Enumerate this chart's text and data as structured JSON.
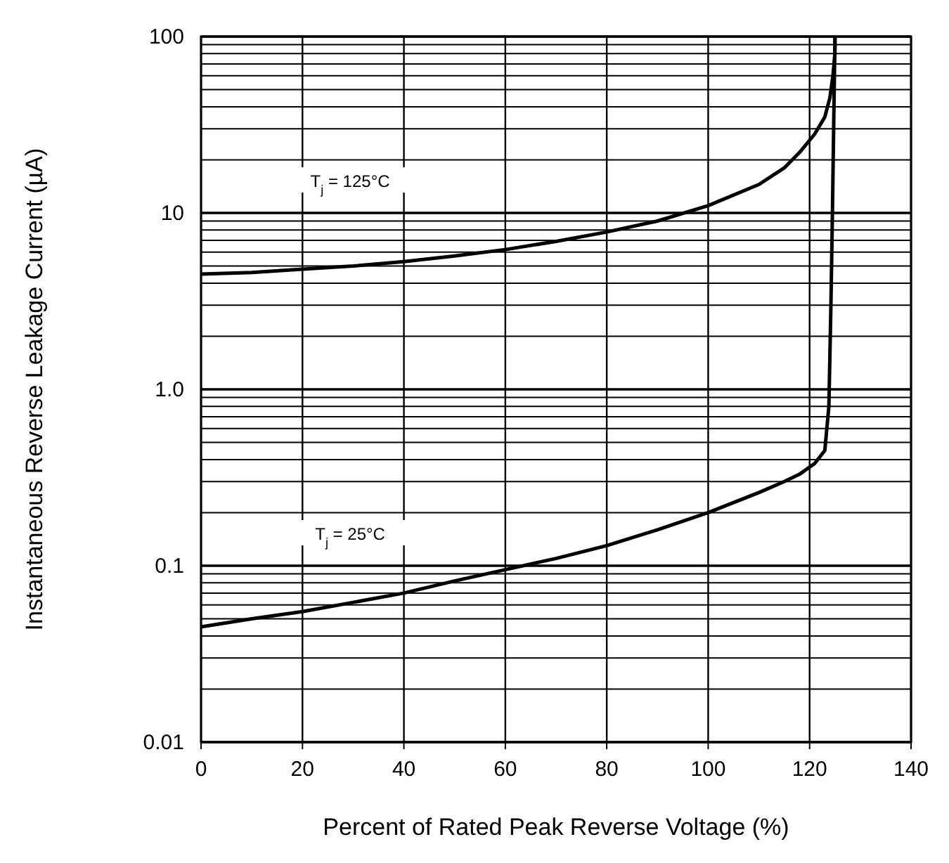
{
  "chart_data": {
    "type": "line",
    "xlabel": "Percent of Rated Peak Reverse Voltage (%)",
    "ylabel": "Instantaneous Reverse Leakage Current (µA)",
    "log": "y",
    "grid": true,
    "marker": "none",
    "line_style": "solid",
    "xlim": [
      0,
      140
    ],
    "xticks": [
      0,
      20,
      40,
      60,
      80,
      100,
      120,
      140
    ],
    "ylim": [
      0.01,
      100
    ],
    "yticks": [
      0.01,
      {
        "value": 0.02,
        "label": null
      },
      {
        "value": 0.03,
        "label": null
      },
      {
        "value": 0.04,
        "label": null
      },
      {
        "value": 0.05,
        "label": null
      },
      {
        "value": 0.06,
        "label": null
      },
      {
        "value": 0.07,
        "label": null
      },
      {
        "value": 0.08,
        "label": null
      },
      {
        "value": 0.09,
        "label": null
      },
      0.1,
      {
        "value": 0.2,
        "label": null
      },
      {
        "value": 0.3,
        "label": null
      },
      {
        "value": 0.4,
        "label": null
      },
      {
        "value": 0.5,
        "label": null
      },
      {
        "value": 0.6,
        "label": null
      },
      {
        "value": 0.7,
        "label": null
      },
      {
        "value": 0.8,
        "label": null
      },
      {
        "value": 0.9,
        "label": null
      },
      {
        "value": 1,
        "label": "1.0"
      },
      {
        "value": 2,
        "label": null
      },
      {
        "value": 3,
        "label": null
      },
      {
        "value": 4,
        "label": null
      },
      {
        "value": 5,
        "label": null
      },
      {
        "value": 6,
        "label": null
      },
      {
        "value": 7,
        "label": null
      },
      {
        "value": 8,
        "label": null
      },
      {
        "value": 9,
        "label": null
      },
      10,
      {
        "value": 20,
        "label": null
      },
      {
        "value": 30,
        "label": null
      },
      {
        "value": 40,
        "label": null
      },
      {
        "value": 50,
        "label": null
      },
      {
        "value": 60,
        "label": null
      },
      {
        "value": 70,
        "label": null
      },
      {
        "value": 80,
        "label": null
      },
      {
        "value": 90,
        "label": null
      },
      100
    ],
    "series": [
      {
        "color": "#000000",
        "x": [
          0,
          10,
          20,
          30,
          40,
          50,
          60,
          70,
          80,
          90,
          100,
          110,
          115,
          118,
          121,
          123,
          124,
          124.6,
          125,
          125
        ],
        "values": [
          4.5,
          4.6,
          4.8,
          5.0,
          5.3,
          5.7,
          6.2,
          6.9,
          7.8,
          9,
          11,
          14.5,
          18,
          22,
          28,
          35,
          45,
          60,
          80,
          100
        ]
      },
      {
        "color": "#000000",
        "x": [
          0,
          10,
          20,
          30,
          40,
          50,
          60,
          70,
          80,
          90,
          100,
          110,
          115,
          118,
          121,
          123,
          123.8,
          124.2,
          124.5,
          124.8,
          125
        ],
        "values": [
          0.045,
          0.05,
          0.055,
          0.062,
          0.07,
          0.082,
          0.095,
          0.11,
          0.13,
          0.16,
          0.2,
          0.26,
          0.3,
          0.33,
          0.38,
          0.45,
          0.8,
          3,
          10,
          40,
          100
        ]
      }
    ],
    "annotations": [
      "T$_{j}$ = 125°C",
      "T$_{j}$ = 25°C"
    ]
  }
}
